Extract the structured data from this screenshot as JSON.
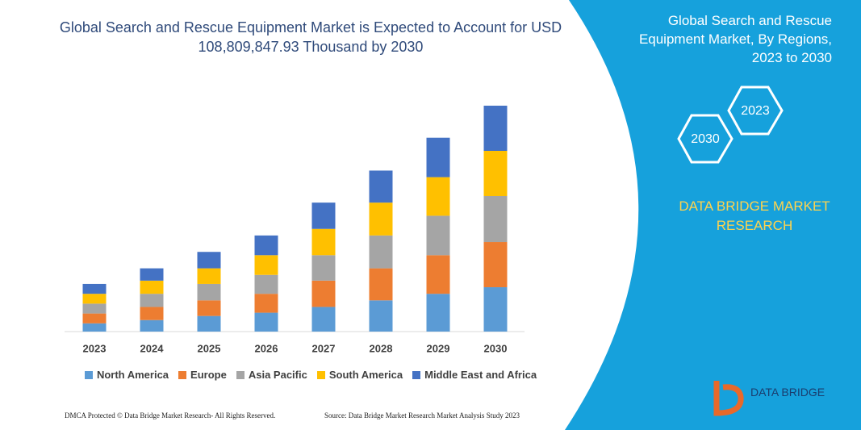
{
  "chart_data": {
    "type": "stacked_bar",
    "title": "Global Search and Rescue Equipment Market is Expected to Account for USD 108,809,847.93 Thousand by 2030",
    "categories": [
      "2023",
      "2024",
      "2025",
      "2026",
      "2027",
      "2028",
      "2029",
      "2030"
    ],
    "series": [
      {
        "name": "North America",
        "color": "#5b9bd5",
        "values": [
          10,
          14,
          19,
          23,
          30,
          38,
          46,
          54
        ]
      },
      {
        "name": "Europe",
        "color": "#ed7d31",
        "values": [
          12,
          16,
          19,
          23,
          32,
          39,
          47,
          55
        ]
      },
      {
        "name": "Asia Pacific",
        "color": "#a5a5a5",
        "values": [
          12,
          16,
          20,
          23,
          31,
          40,
          48,
          56
        ]
      },
      {
        "name": "South America",
        "color": "#ffc000",
        "values": [
          12,
          16,
          19,
          24,
          32,
          40,
          47,
          55
        ]
      },
      {
        "name": "Middle East and Africa",
        "color": "#4472c4",
        "values": [
          12,
          15,
          20,
          24,
          32,
          39,
          48,
          55
        ]
      }
    ]
  },
  "panel": {
    "title": "Global Search and Rescue Equipment Market, By Regions, 2023 to 2030",
    "hex_labels": [
      "2023",
      "2030"
    ],
    "brand": "DATA BRIDGE MARKET RESEARCH"
  },
  "footer": {
    "left": "DMCA Protected © Data Bridge Market Research-  All Rights Reserved.",
    "right": "Source: Data Bridge Market Research  Market Analysis Study 2023"
  },
  "logo": "DATA BRIDGE"
}
